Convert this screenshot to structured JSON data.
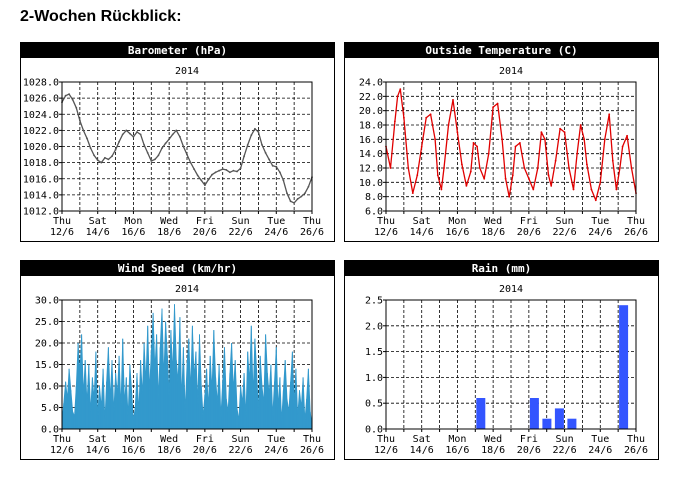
{
  "page": {
    "title": "2-Wochen Rückblick:"
  },
  "x_axis": {
    "tick_labels": [
      [
        "Thu",
        "12/6"
      ],
      [
        "Sat",
        "14/6"
      ],
      [
        "Mon",
        "16/6"
      ],
      [
        "Wed",
        "18/6"
      ],
      [
        "Fri",
        "20/6"
      ],
      [
        "Sun",
        "22/6"
      ],
      [
        "Tue",
        "24/6"
      ],
      [
        "Thu",
        "26/6"
      ]
    ]
  },
  "colors": {
    "header_bg": "#000000",
    "header_text": "#ffffff",
    "grid": "#000000",
    "barometer": "#555555",
    "temperature": "#e00000",
    "wind": "#3399cc",
    "rain": "#3355ff"
  },
  "chart_data": [
    {
      "id": "barometer",
      "type": "line",
      "title": "Barometer (hPa)",
      "subtitle": "2014",
      "xlim": [
        0,
        14
      ],
      "ylim": [
        1012,
        1028
      ],
      "yticks": [
        1012,
        1014,
        1016,
        1018,
        1020,
        1022,
        1024,
        1026,
        1028
      ],
      "ytick_labels": [
        "1012.0",
        "1014.0",
        "1016.0",
        "1018.0",
        "1020.0",
        "1022.0",
        "1024.0",
        "1026.0",
        "1028.0"
      ],
      "grid": true,
      "x": [
        0,
        0.2,
        0.4,
        0.6,
        0.8,
        1.0,
        1.2,
        1.4,
        1.6,
        1.8,
        2.0,
        2.2,
        2.4,
        2.6,
        2.8,
        3.0,
        3.2,
        3.4,
        3.6,
        3.8,
        4.0,
        4.2,
        4.4,
        4.6,
        4.8,
        5.0,
        5.2,
        5.4,
        5.6,
        5.8,
        6.0,
        6.2,
        6.4,
        6.6,
        6.8,
        7.0,
        7.2,
        7.4,
        7.6,
        7.8,
        8.0,
        8.2,
        8.4,
        8.6,
        8.8,
        9.0,
        9.2,
        9.4,
        9.6,
        9.8,
        10.0,
        10.2,
        10.4,
        10.6,
        10.8,
        11.0,
        11.2,
        11.4,
        11.6,
        11.8,
        12.0,
        12.2,
        12.4,
        12.6,
        12.8,
        13.0,
        13.2,
        13.4,
        13.6,
        13.8,
        14.0
      ],
      "series": [
        {
          "values": [
            1025.5,
            1026.3,
            1026.5,
            1025.8,
            1024.8,
            1023.2,
            1022.0,
            1021.0,
            1019.8,
            1018.9,
            1018.3,
            1018.0,
            1018.6,
            1018.4,
            1018.8,
            1019.6,
            1020.6,
            1021.5,
            1022.0,
            1021.6,
            1021.2,
            1021.8,
            1021.5,
            1020.2,
            1019.2,
            1018.2,
            1018.4,
            1018.9,
            1019.8,
            1020.4,
            1020.9,
            1021.5,
            1022.0,
            1021.2,
            1020.0,
            1019.0,
            1018.0,
            1017.2,
            1016.4,
            1015.8,
            1015.2,
            1015.9,
            1016.5,
            1016.8,
            1017.0,
            1017.2,
            1017.1,
            1016.8,
            1017.0,
            1016.9,
            1017.3,
            1018.8,
            1020.2,
            1021.4,
            1022.2,
            1021.8,
            1020.2,
            1019.2,
            1018.4,
            1017.6,
            1017.5,
            1016.8,
            1015.8,
            1014.2,
            1013.2,
            1013.0,
            1013.5,
            1013.8,
            1014.2,
            1015.0,
            1016.2
          ]
        }
      ]
    },
    {
      "id": "temperature",
      "type": "line",
      "title": "Outside Temperature (C)",
      "subtitle": "2014",
      "xlim": [
        0,
        14
      ],
      "ylim": [
        6,
        24
      ],
      "yticks": [
        6,
        8,
        10,
        12,
        14,
        16,
        18,
        20,
        22,
        24
      ],
      "ytick_labels": [
        "6.0",
        "8.0",
        "10.0",
        "12.0",
        "14.0",
        "16.0",
        "18.0",
        "20.0",
        "22.0",
        "24.0"
      ],
      "grid": true,
      "x": [
        0,
        0.25,
        0.5,
        0.65,
        0.8,
        1.0,
        1.25,
        1.5,
        1.75,
        2.0,
        2.25,
        2.5,
        2.75,
        2.9,
        3.1,
        3.25,
        3.5,
        3.75,
        4.0,
        4.25,
        4.5,
        4.75,
        4.9,
        5.1,
        5.25,
        5.5,
        5.75,
        6.0,
        6.25,
        6.5,
        6.7,
        6.9,
        7.1,
        7.25,
        7.5,
        7.75,
        8.0,
        8.25,
        8.5,
        8.7,
        8.9,
        9.1,
        9.25,
        9.5,
        9.75,
        10.0,
        10.25,
        10.5,
        10.7,
        10.9,
        11.1,
        11.25,
        11.5,
        11.75,
        12.0,
        12.25,
        12.5,
        12.7,
        12.9,
        13.1,
        13.25,
        13.5,
        13.75,
        14.0
      ],
      "series": [
        {
          "values": [
            15.0,
            12.0,
            18.5,
            22.0,
            23.0,
            19.0,
            12.0,
            8.5,
            11.0,
            15.0,
            19.0,
            19.5,
            16.0,
            11.0,
            9.0,
            12.0,
            18.0,
            21.5,
            17.0,
            12.5,
            9.5,
            11.5,
            15.5,
            15.0,
            12.0,
            10.5,
            14.0,
            20.5,
            21.0,
            16.0,
            10.5,
            8.0,
            11.0,
            15.0,
            15.5,
            12.0,
            10.5,
            9.0,
            12.0,
            17.0,
            16.0,
            11.0,
            9.5,
            13.0,
            17.5,
            17.0,
            12.0,
            9.0,
            14.0,
            18.0,
            16.0,
            12.5,
            9.0,
            7.5,
            10.0,
            16.0,
            19.5,
            13.0,
            9.0,
            12.0,
            15.0,
            16.5,
            12.0,
            8.5
          ]
        }
      ]
    },
    {
      "id": "wind",
      "type": "area",
      "title": "Wind Speed (km/hr)",
      "subtitle": "2014",
      "xlim": [
        0,
        14
      ],
      "ylim": [
        0,
        30
      ],
      "yticks": [
        0,
        5,
        10,
        15,
        20,
        25,
        30
      ],
      "ytick_labels": [
        "0.0",
        "5.0",
        "10.0",
        "15.0",
        "20.0",
        "25.0",
        "30.0"
      ],
      "grid": true,
      "x": [
        0,
        0.1,
        0.2,
        0.3,
        0.4,
        0.5,
        0.6,
        0.7,
        0.8,
        0.9,
        1.0,
        1.1,
        1.2,
        1.3,
        1.4,
        1.5,
        1.6,
        1.7,
        1.8,
        1.9,
        2.0,
        2.1,
        2.2,
        2.3,
        2.4,
        2.5,
        2.6,
        2.7,
        2.8,
        2.9,
        3.0,
        3.1,
        3.2,
        3.3,
        3.4,
        3.5,
        3.6,
        3.7,
        3.8,
        3.9,
        4.0,
        4.1,
        4.2,
        4.3,
        4.4,
        4.5,
        4.6,
        4.7,
        4.8,
        4.9,
        5.0,
        5.1,
        5.2,
        5.3,
        5.4,
        5.5,
        5.6,
        5.7,
        5.8,
        5.9,
        6.0,
        6.1,
        6.2,
        6.3,
        6.4,
        6.5,
        6.6,
        6.7,
        6.8,
        6.9,
        7.0,
        7.1,
        7.2,
        7.3,
        7.4,
        7.5,
        7.6,
        7.7,
        7.8,
        7.9,
        8.0,
        8.1,
        8.2,
        8.3,
        8.4,
        8.5,
        8.6,
        8.7,
        8.8,
        8.9,
        9.0,
        9.1,
        9.2,
        9.3,
        9.4,
        9.5,
        9.6,
        9.7,
        9.8,
        9.9,
        10.0,
        10.1,
        10.2,
        10.3,
        10.4,
        10.5,
        10.6,
        10.7,
        10.8,
        10.9,
        11.0,
        11.1,
        11.2,
        11.3,
        11.4,
        11.5,
        11.6,
        11.7,
        11.8,
        11.9,
        12.0,
        12.1,
        12.2,
        12.3,
        12.4,
        12.5,
        12.6,
        12.7,
        12.8,
        12.9,
        13.0,
        13.1,
        13.2,
        13.3,
        13.4,
        13.5,
        13.6,
        13.7,
        13.8,
        13.9,
        14.0
      ],
      "series": [
        {
          "values": [
            2,
            6,
            11,
            7,
            14,
            9,
            4,
            3,
            10,
            20,
            13,
            22,
            8,
            16,
            6,
            15,
            4,
            12,
            7,
            18,
            3,
            10,
            5,
            14,
            2,
            11,
            19,
            7,
            16,
            4,
            13,
            8,
            17,
            5,
            21,
            6,
            12,
            3,
            15,
            9,
            2,
            5,
            13,
            4,
            16,
            8,
            20,
            11,
            24,
            9,
            18,
            27,
            14,
            22,
            7,
            19,
            28,
            12,
            25,
            17,
            8,
            23,
            13,
            29,
            16,
            11,
            26,
            7,
            19,
            4,
            15,
            21,
            9,
            24,
            12,
            18,
            6,
            22,
            10,
            3,
            8,
            14,
            5,
            17,
            9,
            23,
            12,
            6,
            15,
            3,
            11,
            19,
            7,
            4,
            13,
            20,
            9,
            16,
            5,
            2,
            10,
            6,
            13,
            3,
            18,
            11,
            24,
            8,
            21,
            14,
            4,
            17,
            10,
            6,
            22,
            13,
            8,
            15,
            3,
            11,
            19,
            5,
            12,
            2,
            9,
            16,
            7,
            4,
            11,
            18,
            6,
            14,
            3,
            9,
            5,
            12,
            2,
            7,
            14,
            4,
            1
          ]
        }
      ]
    },
    {
      "id": "rain",
      "type": "bar",
      "title": "Rain (mm)",
      "subtitle": "2014",
      "xlim": [
        0,
        14
      ],
      "ylim": [
        0,
        2.5
      ],
      "yticks": [
        0,
        0.5,
        1.0,
        1.5,
        2.0,
        2.5
      ],
      "ytick_labels": [
        "0.0",
        "0.5",
        "1.0",
        "1.5",
        "2.0",
        "2.5"
      ],
      "grid": true,
      "x": [
        5,
        8,
        8.7,
        9.4,
        10.1,
        13
      ],
      "series": [
        {
          "values": [
            0.6,
            0.6,
            0.2,
            0.4,
            0.2,
            2.4
          ]
        }
      ]
    }
  ]
}
